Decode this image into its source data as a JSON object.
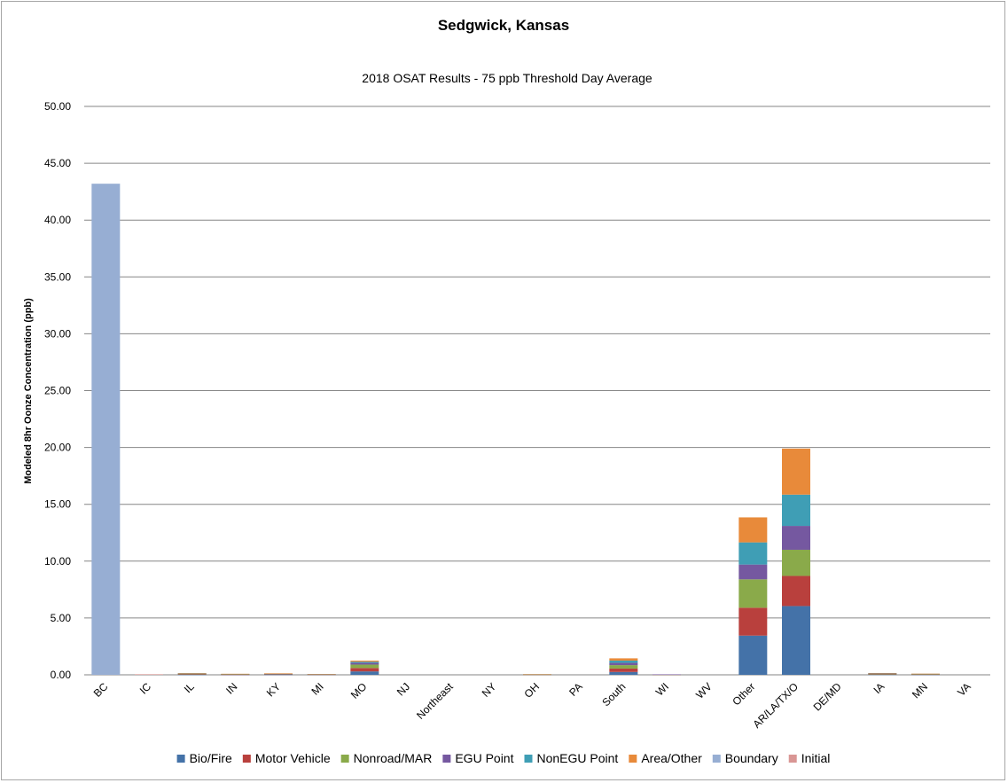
{
  "chart_data": {
    "type": "bar",
    "stacked": true,
    "title": "Sedgwick, Kansas",
    "subtitle": "2018 OSAT Results - 75 ppb Threshold Day Average",
    "xlabel": "",
    "ylabel": "Modeled 8hr Oonze Concentration (ppb)",
    "ylim": [
      0,
      50
    ],
    "ytick_step": 5,
    "ytick_labels": [
      "0.00",
      "5.00",
      "10.00",
      "15.00",
      "20.00",
      "25.00",
      "30.00",
      "35.00",
      "40.00",
      "45.00",
      "50.00"
    ],
    "grid": true,
    "legend_position": "bottom",
    "categories": [
      "BC",
      "IC",
      "IL",
      "IN",
      "KY",
      "MI",
      "MO",
      "NJ",
      "Northeast",
      "NY",
      "OH",
      "PA",
      "South",
      "WI",
      "WV",
      "Other",
      "AR/LA/TX/O",
      "DE/MD",
      "IA",
      "MN",
      "VA"
    ],
    "series": [
      {
        "name": "Bio/Fire",
        "color": "#4472a8",
        "values": [
          0,
          0,
          0.02,
          0.01,
          0.02,
          0.01,
          0.3,
          0,
          0,
          0,
          0.01,
          0,
          0.25,
          0.01,
          0,
          3.45,
          6.05,
          0,
          0.03,
          0.02,
          0
        ]
      },
      {
        "name": "Motor Vehicle",
        "color": "#b9403d",
        "values": [
          0,
          0,
          0.03,
          0.02,
          0.02,
          0.02,
          0.3,
          0,
          0,
          0,
          0.01,
          0,
          0.3,
          0.01,
          0,
          2.45,
          2.65,
          0,
          0.03,
          0.02,
          0
        ]
      },
      {
        "name": "Nonroad/MAR",
        "color": "#8aaa4a",
        "values": [
          0,
          0,
          0.03,
          0.02,
          0.03,
          0.01,
          0.3,
          0,
          0,
          0,
          0.01,
          0,
          0.3,
          0.01,
          0,
          2.5,
          2.3,
          0,
          0.03,
          0.02,
          0
        ]
      },
      {
        "name": "EGU Point",
        "color": "#7558a0",
        "values": [
          0,
          0,
          0.03,
          0.02,
          0.02,
          0.01,
          0.15,
          0,
          0,
          0,
          0.01,
          0,
          0.2,
          0.01,
          0,
          1.3,
          2.1,
          0,
          0.03,
          0.02,
          0
        ]
      },
      {
        "name": "NonEGU Point",
        "color": "#3f9eb5",
        "values": [
          0,
          0,
          0.02,
          0.01,
          0.02,
          0.01,
          0.1,
          0,
          0,
          0,
          0.01,
          0,
          0.2,
          0,
          0,
          1.95,
          2.75,
          0,
          0.02,
          0.01,
          0
        ]
      },
      {
        "name": "Area/Other",
        "color": "#e88a3a",
        "values": [
          0,
          0,
          0.02,
          0.01,
          0.02,
          0.01,
          0.1,
          0,
          0,
          0,
          0.01,
          0,
          0.2,
          0,
          0,
          2.2,
          4.05,
          0,
          0.02,
          0.01,
          0
        ]
      },
      {
        "name": "Boundary",
        "color": "#97aed3",
        "values": [
          43.2,
          0,
          0,
          0,
          0,
          0,
          0,
          0,
          0,
          0,
          0,
          0,
          0,
          0,
          0,
          0,
          0,
          0,
          0,
          0,
          0
        ]
      },
      {
        "name": "Initial",
        "color": "#d99694",
        "values": [
          0,
          0.05,
          0,
          0,
          0,
          0,
          0,
          0,
          0,
          0,
          0,
          0,
          0,
          0,
          0,
          0,
          0,
          0,
          0,
          0,
          0
        ]
      }
    ]
  }
}
